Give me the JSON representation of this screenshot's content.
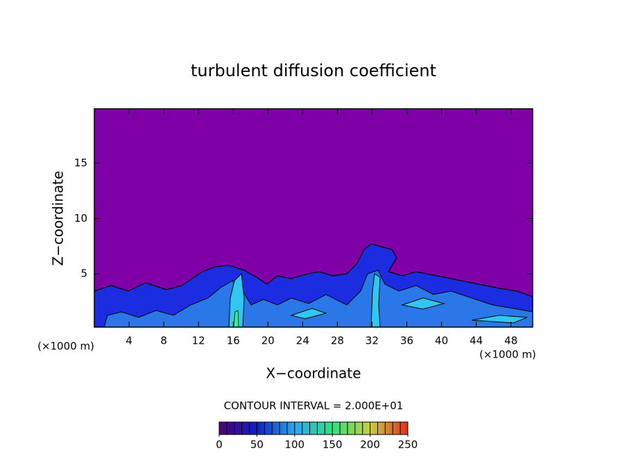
{
  "chart_data": {
    "type": "contour",
    "title": "turbulent diffusion coefficient",
    "x_label": "X−coordinate",
    "y_label": "Z−coordinate",
    "x_unit_left": "(×1000 m)",
    "x_unit_right": "(×1000 m)",
    "contour_note": "CONTOUR INTERVAL = 2.000E+01",
    "xlim": [
      0,
      50.5
    ],
    "xticks": [
      4,
      8,
      12,
      16,
      20,
      24,
      28,
      32,
      36,
      40,
      44,
      48
    ],
    "ylim": [
      0.2,
      19.9
    ],
    "yticks": [
      5,
      10,
      15
    ],
    "background_color": "#8000a8",
    "colorbar": {
      "lim": [
        0,
        250
      ],
      "ticks": [
        0,
        50,
        100,
        150,
        200,
        250
      ],
      "colors": [
        "#50007a",
        "#1020c0",
        "#2aa8f0",
        "#30e080",
        "#c8d040",
        "#e03020"
      ]
    }
  }
}
